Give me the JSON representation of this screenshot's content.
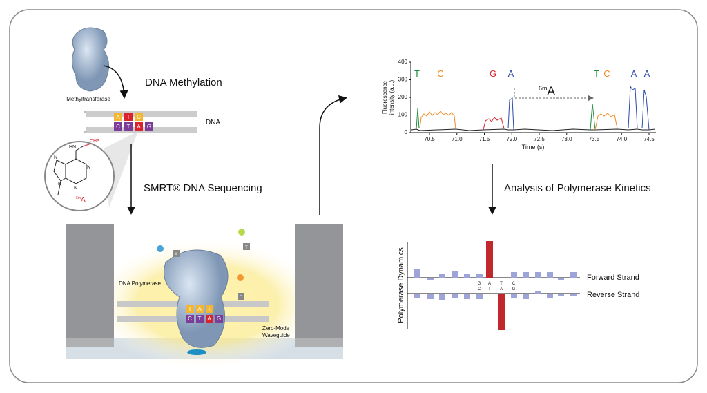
{
  "methylation": {
    "title": "DNA Methylation",
    "enzyme": "Methyltransferase",
    "dna": "DNA",
    "top_bases": [
      "A",
      "T",
      "C"
    ],
    "bottom_bases": [
      "C",
      "T",
      "A",
      "G"
    ]
  },
  "molecule": {
    "nh": "HN",
    "methyl": "CH3",
    "n_labels": [
      "N",
      "N",
      "N",
      "N"
    ],
    "name_sup": "6m",
    "name_base": "A"
  },
  "sequencing": {
    "title": "SMRT® DNA Sequencing",
    "polymerase": "DNA Polymerase",
    "waveguide": [
      "Zero-Mode",
      "Waveguide"
    ],
    "top_bases": [
      "T",
      "A",
      "T"
    ],
    "bottom_bases": [
      "C",
      "T",
      "A",
      "G"
    ],
    "free_bases": [
      "A",
      "T",
      "C"
    ]
  },
  "trace": {
    "y_label": [
      "Fluorescence",
      "intensity (a.u.)"
    ],
    "x_label": "Time (s)",
    "yticks": [
      "0",
      "100",
      "200",
      "300",
      "400"
    ],
    "xticks": [
      "70.5",
      "71.0",
      "71.5",
      "72.0",
      "72.5",
      "73.0",
      "73.5",
      "74.0",
      "74.5"
    ],
    "peaks": [
      "T",
      "C",
      "G",
      "A",
      "T",
      "C",
      "A",
      "A"
    ],
    "annotation_sup": "6m",
    "annotation_base": "A"
  },
  "kinetics": {
    "title": "Analysis of Polymerase Kinetics",
    "y_label": "Polymerase Dynamics",
    "forward": "Forward Strand",
    "reverse": "Reverse Strand",
    "forward_bases": [
      "G",
      "A",
      "T",
      "C"
    ],
    "reverse_bases": [
      "C",
      "T",
      "A",
      "G"
    ]
  }
}
